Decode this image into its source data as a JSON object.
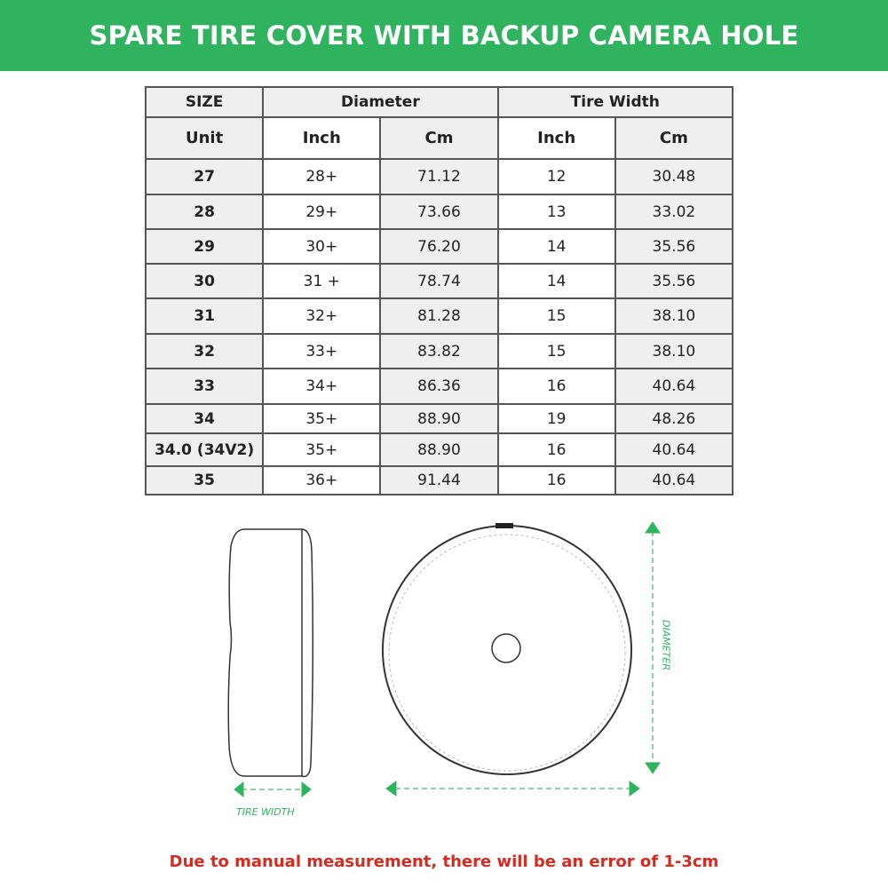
{
  "title": "SPARE TIRE COVER WITH BACKUP CAMERA HOLE",
  "table": {
    "group_headers": [
      "SIZE",
      "Diameter",
      "Tire Width"
    ],
    "sub_headers": [
      "Unit",
      "Inch",
      "Cm",
      "Inch",
      "Cm"
    ],
    "rows": [
      [
        "27",
        "28+",
        "71.12",
        "12",
        "30.48"
      ],
      [
        "28",
        "29+",
        "73.66",
        "13",
        "33.02"
      ],
      [
        "29",
        "30+",
        "76.20",
        "14",
        "35.56"
      ],
      [
        "30",
        "31 +",
        "78.74",
        "14",
        "35.56"
      ],
      [
        "31",
        "32+",
        "81.28",
        "15",
        "38.10"
      ],
      [
        "32",
        "33+",
        "83.82",
        "15",
        "38.10"
      ],
      [
        "33",
        "34+",
        "86.36",
        "16",
        "40.64"
      ],
      [
        "34",
        "35+",
        "88.90",
        "19",
        "48.26"
      ],
      [
        "34.0 (34V2)",
        "35+",
        "88.90",
        "16",
        "40.64"
      ],
      [
        "35",
        "36+",
        "91.44",
        "16",
        "40.64"
      ]
    ]
  },
  "diagram": {
    "tire_width_label": "TIRE WIDTH",
    "diameter_label": "DIAMETER",
    "accent_color": "#2fb35f"
  },
  "note": "Due to manual measurement, there will be an error of 1-3cm"
}
